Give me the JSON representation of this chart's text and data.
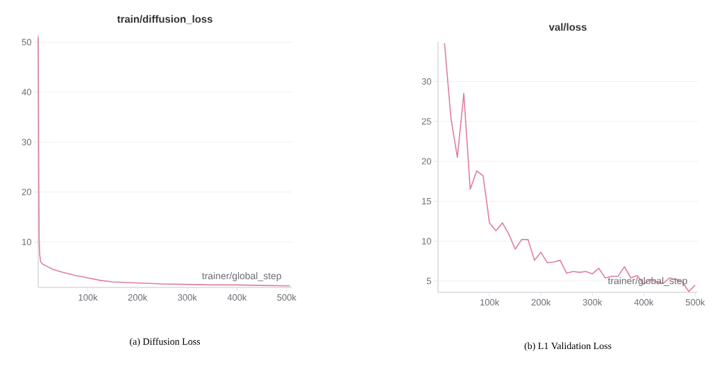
{
  "chart_data": [
    {
      "type": "line",
      "title": "train/diffusion_loss",
      "xlabel": "trainer/global_step",
      "annotations": [
        "(a) Diffusion Loss"
      ],
      "x": [
        0,
        1000,
        2000,
        3000,
        5000,
        10000,
        20000,
        30000,
        50000,
        75000,
        100000,
        125000,
        150000,
        200000,
        250000,
        300000,
        350000,
        400000,
        450000,
        507000
      ],
      "values": [
        51,
        25,
        10,
        7.5,
        6,
        5.5,
        5,
        4.5,
        3.9,
        3.3,
        2.8,
        2.3,
        2.0,
        1.8,
        1.6,
        1.5,
        1.4,
        1.4,
        1.3,
        1.2
      ],
      "color": "#df7e9f",
      "xlim": [
        0,
        510000
      ],
      "ylim": [
        0.9,
        51.5
      ],
      "xticks": [
        {
          "value": 100000,
          "label": "100k"
        },
        {
          "value": 200000,
          "label": "200k"
        },
        {
          "value": 300000,
          "label": "300k"
        },
        {
          "value": 400000,
          "label": "400k"
        },
        {
          "value": 500000,
          "label": "500k"
        }
      ],
      "yticks": [
        10,
        20,
        30,
        40,
        50
      ],
      "grid": "y",
      "marker": "none",
      "line_style": "solid"
    },
    {
      "type": "line",
      "title": "val/loss",
      "xlabel": "trainer/global_step",
      "annotations": [
        "(b) L1 Validation Loss"
      ],
      "x": [
        12500,
        25000,
        37500,
        50000,
        62500,
        75000,
        87500,
        100000,
        112500,
        125000,
        137500,
        150000,
        162500,
        175000,
        187500,
        200000,
        212500,
        225000,
        237500,
        250000,
        262500,
        275000,
        287500,
        300000,
        312500,
        325000,
        337500,
        350000,
        362500,
        375000,
        387500,
        400000,
        412500,
        425000,
        437500,
        450000,
        462500,
        475000,
        487500,
        500000
      ],
      "values": [
        34.8,
        25.4,
        20.5,
        28.5,
        16.5,
        18.8,
        18.2,
        12.3,
        11.3,
        12.3,
        10.9,
        9.0,
        10.2,
        10.2,
        7.6,
        8.6,
        7.3,
        7.4,
        7.6,
        6.0,
        6.2,
        6.1,
        6.2,
        5.9,
        6.6,
        5.4,
        5.6,
        5.6,
        6.8,
        5.4,
        5.7,
        4.6,
        5.2,
        4.9,
        4.7,
        5.4,
        5.2,
        4.9,
        3.7,
        4.5
      ],
      "color": "#df7e9f",
      "xlim": [
        0,
        505000
      ],
      "ylim": [
        3.6,
        35
      ],
      "xticks": [
        {
          "value": 100000,
          "label": "100k"
        },
        {
          "value": 200000,
          "label": "200k"
        },
        {
          "value": 300000,
          "label": "300k"
        },
        {
          "value": 400000,
          "label": "400k"
        },
        {
          "value": 500000,
          "label": "500k"
        }
      ],
      "yticks": [
        5,
        10,
        15,
        20,
        25,
        30
      ],
      "grid": "y",
      "marker": "none",
      "line_style": "solid"
    }
  ]
}
